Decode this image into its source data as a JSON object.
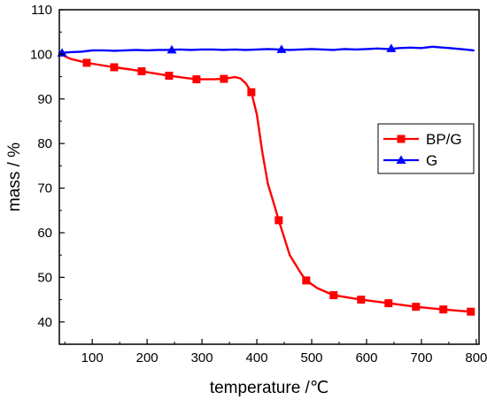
{
  "chart_data": {
    "type": "line",
    "xlabel": "temperature /℃",
    "ylabel": "mass / %",
    "xlim": [
      40,
      805
    ],
    "ylim": [
      35,
      110
    ],
    "x_ticks": [
      100,
      200,
      300,
      400,
      500,
      600,
      700,
      800
    ],
    "y_ticks": [
      40,
      50,
      60,
      70,
      80,
      90,
      100,
      110
    ],
    "grid": false,
    "legend_position": "right",
    "series": [
      {
        "name": "BP/G",
        "color": "#ff0000",
        "marker": "square",
        "x": [
          40,
          60,
          90,
          120,
          140,
          170,
          190,
          220,
          240,
          270,
          290,
          320,
          340,
          360,
          370,
          380,
          390,
          400,
          410,
          420,
          430,
          440,
          460,
          480,
          490,
          510,
          540,
          590,
          640,
          690,
          740,
          790
        ],
        "values": [
          100.2,
          99.0,
          98.1,
          97.5,
          97.1,
          96.6,
          96.2,
          95.6,
          95.2,
          94.7,
          94.4,
          94.4,
          94.5,
          94.9,
          94.6,
          93.5,
          91.5,
          86.5,
          78.0,
          71.0,
          67.0,
          62.8,
          55.0,
          51.0,
          49.3,
          47.6,
          46.0,
          45.0,
          44.2,
          43.4,
          42.8,
          42.3
        ],
        "marked_x": [
          90,
          140,
          190,
          240,
          290,
          340,
          390,
          440,
          490,
          540,
          590,
          640,
          690,
          740,
          790
        ],
        "marked_values": [
          98.1,
          97.1,
          96.2,
          95.2,
          94.4,
          94.5,
          91.5,
          62.8,
          49.3,
          46.0,
          45.0,
          44.2,
          43.4,
          42.8,
          42.3
        ]
      },
      {
        "name": "G",
        "color": "#0000ff",
        "marker": "triangle",
        "x": [
          40,
          60,
          80,
          100,
          120,
          140,
          160,
          180,
          200,
          220,
          240,
          260,
          280,
          300,
          320,
          340,
          360,
          380,
          400,
          420,
          440,
          460,
          480,
          500,
          520,
          540,
          560,
          580,
          600,
          620,
          640,
          660,
          680,
          700,
          720,
          740,
          760,
          780,
          795
        ],
        "values": [
          100.3,
          100.5,
          100.6,
          100.9,
          100.9,
          100.8,
          100.9,
          101.0,
          100.9,
          101.0,
          101.0,
          101.1,
          101.0,
          101.1,
          101.1,
          101.0,
          101.1,
          101.0,
          101.1,
          101.2,
          101.1,
          101.0,
          101.1,
          101.2,
          101.1,
          101.0,
          101.2,
          101.1,
          101.2,
          101.3,
          101.2,
          101.4,
          101.5,
          101.4,
          101.7,
          101.5,
          101.3,
          101.1,
          100.9
        ],
        "marked_x": [
          45,
          245,
          445,
          645
        ],
        "marked_values": [
          100.3,
          101.0,
          101.1,
          101.3
        ]
      }
    ]
  }
}
